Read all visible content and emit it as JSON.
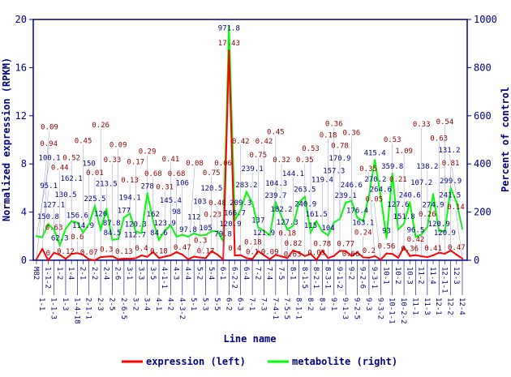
{
  "chart_data": {
    "type": "line",
    "title": "",
    "xlabel": "Line name",
    "ylabel": "Normalized expression (RPKM)",
    "ylabel_right": "Percent of control",
    "ylim": [
      0,
      20
    ],
    "ylim_right": [
      0,
      1000
    ],
    "yticks": [
      0,
      4,
      8,
      12,
      16,
      20
    ],
    "yticks_right": [
      0,
      200,
      400,
      600,
      800,
      1000
    ],
    "legend": {
      "placement": "bottom",
      "entries": [
        "expression (left)",
        "metabolite (right)"
      ]
    },
    "colors": {
      "expression": "#ff0000",
      "metabolite": "#00ff00",
      "axis": "#000080"
    },
    "categories": [
      "M82",
      "1-1",
      "1-1-2",
      "1-1-3",
      "1-2",
      "1-3",
      "1-4",
      "1-4-18",
      "2-1",
      "2-1-1",
      "2-2",
      "2-3",
      "2-4",
      "2-5",
      "2-6",
      "2-6-5",
      "3-1",
      "3-2",
      "3-3",
      "3-4",
      "3-5",
      "4-1",
      "4-1-1",
      "4-2",
      "4-3",
      "4-3-2",
      "4-4",
      "5-1",
      "5-2",
      "5-3",
      "5-4",
      "5-5",
      "6-1",
      "6-2",
      "6-2-2",
      "6-3",
      "6-4",
      "7-1",
      "7-2",
      "7-3",
      "7-4",
      "7-4-1",
      "7-5",
      "7-5-5",
      "8-1",
      "8-1-1",
      "8-1-5",
      "8-2",
      "8-2-1",
      "8-3",
      "8-3-1",
      "9-1",
      "9-1-2",
      "9-1-3",
      "9-2",
      "9-2-5",
      "9-2-6",
      "9-3",
      "9-3-1",
      "9-3-2",
      "10-1",
      "10-1-1",
      "10-2",
      "10-2-2",
      "10-3",
      "11-1",
      "11-2",
      "11-3",
      "11-4",
      "12-1",
      "12-1-1",
      "12-2",
      "12-3",
      "12-4"
    ],
    "series": [
      {
        "name": "expression (left)",
        "axis": "left",
        "values": [
          0.09,
          0.94,
          0,
          0.63,
          0.44,
          0.12,
          0.52,
          0.6,
          0.45,
          0.07,
          0.01,
          0.26,
          0.3,
          0.33,
          0.09,
          0.13,
          0.13,
          0.17,
          0.4,
          0.29,
          0.68,
          0.18,
          0.31,
          0.41,
          0.68,
          0.47,
          0.08,
          0.3,
          0.23,
          0.17,
          0.75,
          0.48,
          0.06,
          17.43,
          0.4,
          0.42,
          0.18,
          0.1,
          0.75,
          0.42,
          0.09,
          0.45,
          0.32,
          0.18,
          0.82,
          0.63,
          0.35,
          0.53,
          0.03,
          0.78,
          0.18,
          0.36,
          0.78,
          0.77,
          0.36,
          0.66,
          0.24,
          0.2,
          0.35,
          0.05,
          0.56,
          0.53,
          0.21,
          1.09,
          0.36,
          0.42,
          0.33,
          0.26,
          0.41,
          0.63,
          0.54,
          0.81,
          0.47,
          0.14
        ]
      },
      {
        "name": "metabolite (right)",
        "axis": "right",
        "values": [
          100.1,
          95.1,
          150.8,
          127.1,
          62.3,
          130.5,
          162.1,
          156.6,
          114.9,
          150,
          225.5,
          126,
          213.5,
          84.5,
          87.8,
          177,
          194.1,
          120.3,
          112.7,
          278,
          162,
          84.6,
          123.9,
          145.4,
          98,
          106,
          97.8,
          112,
          103,
          105,
          120.5,
          120.9,
          79.8,
          971.8,
          166.7,
          209.3,
          283.2,
          239.1,
          137,
          121.9,
          104.3,
          239.7,
          182.2,
          127.3,
          144.1,
          240.9,
          263.5,
          115,
          161.5,
          119.4,
          104,
          157.3,
          170.9,
          239.1,
          246.6,
          176.4,
          163.1,
          270.2,
          415.4,
          264.6,
          93,
          359.8,
          127.6,
          151.8,
          240.6,
          96.5,
          107.2,
          138.2,
          274.9,
          120.9,
          120.9,
          299.9,
          241.5,
          131.2
        ]
      }
    ]
  }
}
